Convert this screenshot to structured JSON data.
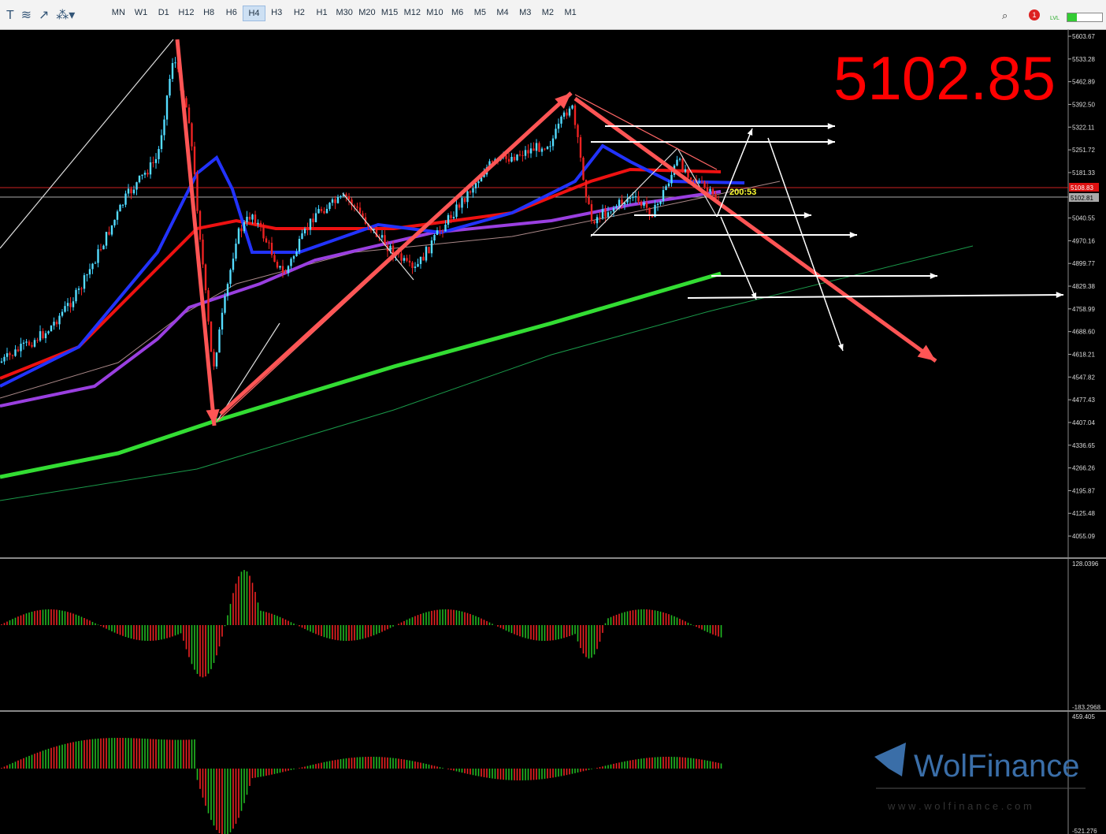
{
  "toolbar": {
    "timeframes": [
      "MN",
      "W1",
      "D1",
      "H12",
      "H8",
      "H6",
      "H4",
      "H3",
      "H2",
      "H1",
      "M30",
      "M20",
      "M15",
      "M12",
      "M10",
      "M6",
      "M5",
      "M4",
      "M3",
      "M2",
      "M1"
    ],
    "active": "H4",
    "badge": "1",
    "level": "LVL"
  },
  "chart": {
    "price_axis": [
      "5603.67",
      "5533.28",
      "5462.89",
      "5392.50",
      "5322.11",
      "5251.72",
      "5181.33",
      "5040.55",
      "4970.16",
      "4899.77",
      "4829.38",
      "4758.99",
      "4688.60",
      "4618.21",
      "4547.82",
      "4477.43",
      "4407.04",
      "4336.65",
      "4266.26",
      "4195.87",
      "4125.48",
      "4055.09"
    ],
    "ask_label": "5108.83",
    "bid_label": "5102.81",
    "big_price": "5102.85",
    "timer": "200:53"
  },
  "indicator1": {
    "max": "128.0396",
    "min": "-183.2968"
  },
  "indicator2": {
    "max": "459.405",
    "min": "-521.276"
  },
  "watermark": {
    "brand": "WolFinance",
    "url": "w w w . w o l f i n a n c e . c o m"
  }
}
